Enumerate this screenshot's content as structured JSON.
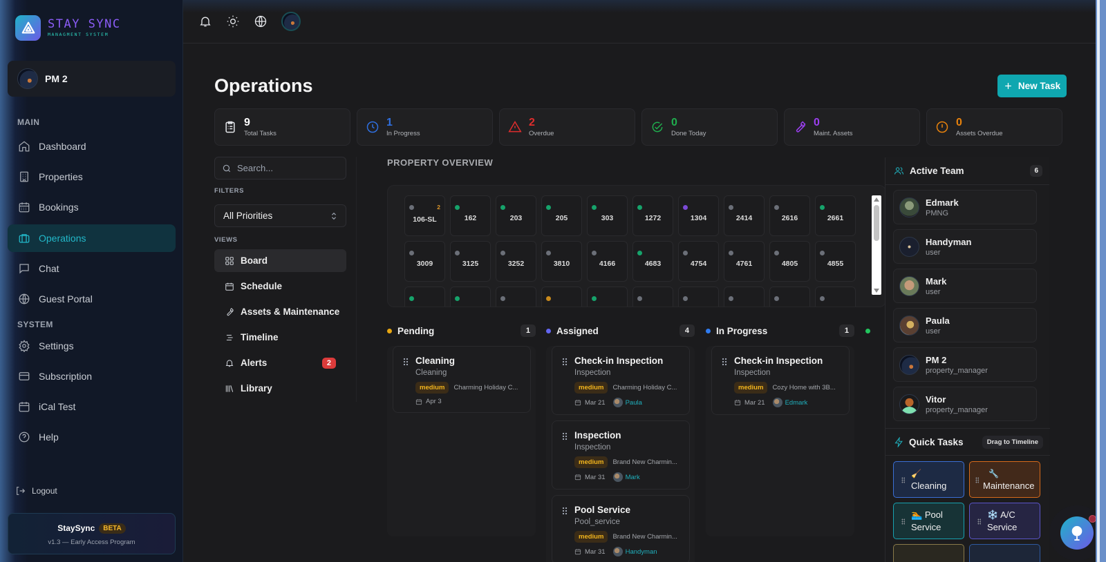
{
  "brand": {
    "title": "STAY SYNC",
    "subtitle": "MANAGMENT SYSTEM"
  },
  "user": {
    "name": "PM 2"
  },
  "sidebar": {
    "main_label": "MAIN",
    "system_label": "SYSTEM",
    "main_items": [
      {
        "label": "Dashboard",
        "icon": "home-icon"
      },
      {
        "label": "Properties",
        "icon": "building-icon"
      },
      {
        "label": "Bookings",
        "icon": "calendar-icon"
      },
      {
        "label": "Operations",
        "icon": "briefcase-icon",
        "active": true
      },
      {
        "label": "Chat",
        "icon": "message-icon"
      },
      {
        "label": "Guest Portal",
        "icon": "globe-icon"
      }
    ],
    "system_items": [
      {
        "label": "Settings",
        "icon": "gear-icon"
      },
      {
        "label": "Subscription",
        "icon": "credit-card-icon"
      },
      {
        "label": "iCal Test",
        "icon": "calendar-icon"
      },
      {
        "label": "Help",
        "icon": "help-circle-icon"
      }
    ],
    "logout_label": "Logout",
    "beta_card": {
      "name": "StaySync",
      "badge": "BETA",
      "version": "v1.3 — Early Access Program"
    }
  },
  "topbar": {
    "icons": [
      "bell-icon",
      "sun-icon",
      "globe-icon",
      "avatar"
    ]
  },
  "page": {
    "title": "Operations",
    "new_task_label": "New Task"
  },
  "stats": [
    {
      "value": "9",
      "label": "Total Tasks",
      "color": "#ffffff",
      "icon": "clipboard-icon"
    },
    {
      "value": "1",
      "label": "In Progress",
      "color": "#2f6fe0",
      "icon": "clock-icon"
    },
    {
      "value": "2",
      "label": "Overdue",
      "color": "#e02d2d",
      "icon": "warning-icon"
    },
    {
      "value": "0",
      "label": "Done Today",
      "color": "#1fae4e",
      "icon": "check-circle-icon"
    },
    {
      "value": "0",
      "label": "Maint. Assets",
      "color": "#9b3ff0",
      "icon": "wrench-icon"
    },
    {
      "value": "0",
      "label": "Assets Overdue",
      "color": "#e8820c",
      "icon": "alert-circle-icon"
    }
  ],
  "filters": {
    "search_placeholder": "Search...",
    "filters_label": "FILTERS",
    "priority_selected": "All Priorities",
    "views_label": "VIEWS",
    "views": [
      {
        "label": "Board",
        "icon": "grid-icon",
        "active": true
      },
      {
        "label": "Schedule",
        "icon": "calendar-icon"
      },
      {
        "label": "Assets & Maintenance",
        "icon": "wrench-icon"
      },
      {
        "label": "Timeline",
        "icon": "timeline-icon"
      },
      {
        "label": "Alerts",
        "icon": "bell-icon",
        "badge": "2"
      },
      {
        "label": "Library",
        "icon": "library-icon"
      }
    ]
  },
  "property_overview": {
    "title": "PROPERTY OVERVIEW",
    "properties": [
      {
        "id": "106-SL",
        "status": "#6b6f78",
        "count": "2"
      },
      {
        "id": "162",
        "status": "#16a36b"
      },
      {
        "id": "203",
        "status": "#16a36b"
      },
      {
        "id": "205",
        "status": "#16a36b"
      },
      {
        "id": "303",
        "status": "#16a36b"
      },
      {
        "id": "1272",
        "status": "#16a36b"
      },
      {
        "id": "1304",
        "status": "#7a4ad6"
      },
      {
        "id": "2414",
        "status": "#6b6f78"
      },
      {
        "id": "2616",
        "status": "#6b6f78"
      },
      {
        "id": "2661",
        "status": "#16a36b"
      },
      {
        "id": "3009",
        "status": "#6b6f78"
      },
      {
        "id": "3125",
        "status": "#6b6f78"
      },
      {
        "id": "3252",
        "status": "#6b6f78"
      },
      {
        "id": "3810",
        "status": "#6b6f78"
      },
      {
        "id": "4166",
        "status": "#6b6f78"
      },
      {
        "id": "4683",
        "status": "#16a36b"
      },
      {
        "id": "4754",
        "status": "#6b6f78"
      },
      {
        "id": "4761",
        "status": "#6b6f78"
      },
      {
        "id": "4805",
        "status": "#6b6f78"
      },
      {
        "id": "4855",
        "status": "#6b6f78"
      },
      {
        "id": "",
        "status": "#16a36b"
      },
      {
        "id": "",
        "status": "#16a36b"
      },
      {
        "id": "",
        "status": "#6b6f78"
      },
      {
        "id": "",
        "status": "#c98a1c"
      },
      {
        "id": "",
        "status": "#16a36b"
      },
      {
        "id": "",
        "status": "#6b6f78"
      },
      {
        "id": "",
        "status": "#6b6f78"
      },
      {
        "id": "",
        "status": "#6b6f78"
      },
      {
        "id": "",
        "status": "#6b6f78"
      },
      {
        "id": "",
        "status": "#6b6f78"
      }
    ]
  },
  "board": {
    "columns": [
      {
        "name": "Pending",
        "count": "1",
        "color": "#e8a712",
        "cards": [
          {
            "title": "Cleaning",
            "type": "Cleaning",
            "priority": "medium",
            "property": "Charming Holiday C...",
            "date": "Apr 3"
          }
        ]
      },
      {
        "name": "Assigned",
        "count": "4",
        "color": "#6366f1",
        "cards": [
          {
            "title": "Check-in Inspection",
            "type": "Inspection",
            "priority": "medium",
            "property": "Charming Holiday C...",
            "date": "Mar 21",
            "assignee": "Paula"
          },
          {
            "title": "Inspection",
            "type": "Inspection",
            "priority": "medium",
            "property": "Brand New Charmin...",
            "date": "Mar 31",
            "assignee": "Mark"
          },
          {
            "title": "Pool Service",
            "type": "Pool_service",
            "priority": "medium",
            "property": "Brand New Charmin...",
            "date": "Mar 31",
            "assignee": "Handyman"
          }
        ]
      },
      {
        "name": "In Progress",
        "count": "1",
        "color": "#2f7bf0",
        "cards": [
          {
            "title": "Check-in Inspection",
            "type": "Inspection",
            "priority": "medium",
            "property": "Cozy Home with 3B...",
            "date": "Mar 21",
            "assignee": "Edmark"
          }
        ]
      },
      {
        "name": "",
        "count": "",
        "color": "#22c55e",
        "cards": []
      }
    ]
  },
  "team": {
    "title": "Active Team",
    "count": "6",
    "members": [
      {
        "name": "Edmark",
        "role": "PMNG"
      },
      {
        "name": "Handyman",
        "role": "user"
      },
      {
        "name": "Mark",
        "role": "user"
      },
      {
        "name": "Paula",
        "role": "user"
      },
      {
        "name": "PM 2",
        "role": "property_manager"
      },
      {
        "name": "Vitor",
        "role": "property_manager"
      }
    ]
  },
  "quick_tasks": {
    "title": "Quick Tasks",
    "hint": "Drag to Timeline",
    "items": [
      {
        "emoji": "🧹",
        "label": "Cleaning",
        "border": "#3b6fd6",
        "bg": "#1d2a44"
      },
      {
        "emoji": "🔧",
        "label": "Maintenance",
        "border": "#d86a1a",
        "bg": "#42291a"
      },
      {
        "emoji": "🏊",
        "label": "Pool Service",
        "border": "#17a2b0",
        "bg": "#173336"
      },
      {
        "emoji": "❄️",
        "label": "A/C Service",
        "border": "#5b55c9",
        "bg": "#262543"
      }
    ]
  }
}
